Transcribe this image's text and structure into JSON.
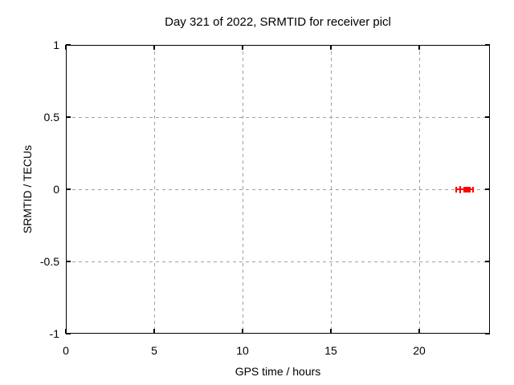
{
  "title": "Day 321 of 2022, SRMTID for receiver picl",
  "colors": {
    "background": "#ffffff",
    "border": "#000000",
    "text": "#000000",
    "grid": "#a0a0a0",
    "series": "#ff0000"
  },
  "chart_data": {
    "type": "scatter",
    "title": "Day 321 of 2022, SRMTID for receiver picl",
    "xlabel": "GPS time / hours",
    "ylabel": "SRMTID / TECUs",
    "xlim": [
      0,
      24
    ],
    "ylim": [
      -1,
      1
    ],
    "xticks": [
      0,
      5,
      10,
      15,
      20
    ],
    "xtick_labels": [
      "0",
      "5",
      "10",
      "15",
      "20"
    ],
    "yticks": [
      1,
      0.5,
      0,
      -0.5,
      -1
    ],
    "ytick_labels": [
      "1",
      "0.5",
      "0",
      "-0.5",
      "-1"
    ],
    "grid": true,
    "grid_style": "dashed",
    "legend": false,
    "series": [
      {
        "name": "SRMTID",
        "color": "#ff0000",
        "style": "points with x-errorbars",
        "points": [
          {
            "x": 22.3,
            "y": 0,
            "xlow": 22.1,
            "xhigh": 22.55,
            "marker": "plus"
          },
          {
            "x": 22.75,
            "y": 0,
            "xlow": 22.6,
            "xhigh": 23.05,
            "marker": "square"
          }
        ]
      }
    ]
  }
}
